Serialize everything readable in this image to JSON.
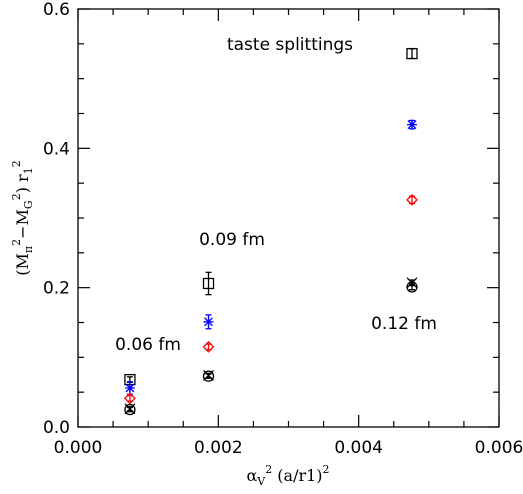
{
  "chart_data": {
    "type": "scatter",
    "title": "taste splittings",
    "xlabel_parts": [
      "α",
      "V",
      "2",
      " (a/r1)",
      "2"
    ],
    "ylabel_parts": [
      "(M",
      "π",
      "2",
      "−M",
      "G",
      "2",
      ") r",
      "1",
      "2"
    ],
    "xlim": [
      0.0,
      0.006
    ],
    "ylim": [
      0.0,
      0.6
    ],
    "x_ticks": [
      "0.000",
      "0.002",
      "0.004",
      "0.006"
    ],
    "y_ticks": [
      "0.0",
      "0.2",
      "0.4",
      "0.6"
    ],
    "annotations": [
      "0.06 fm",
      "0.09 fm",
      "0.12 fm"
    ],
    "grid": false,
    "series": [
      {
        "marker": "square",
        "color": "#000000",
        "x": [
          0.00074,
          0.00186,
          0.00476
        ],
        "y": [
          0.068,
          0.206,
          0.536
        ],
        "err": [
          0.004,
          0.016,
          0.007
        ]
      },
      {
        "marker": "star",
        "color": "#0000ff",
        "x": [
          0.00074,
          0.00186,
          0.00476
        ],
        "y": [
          0.056,
          0.151,
          0.434
        ],
        "err": [
          0.009,
          0.01,
          0.006
        ]
      },
      {
        "marker": "diamond",
        "color": "#ff0000",
        "x": [
          0.00074,
          0.00186,
          0.00476
        ],
        "y": [
          0.041,
          0.115,
          0.326
        ],
        "err": [
          0.004,
          0.004,
          0.005
        ]
      },
      {
        "marker": "cross",
        "color": "#000000",
        "x": [
          0.00074,
          0.00186,
          0.00476
        ],
        "y": [
          0.026,
          0.074,
          0.207
        ],
        "err": [
          0.003,
          0.003,
          0.004
        ]
      },
      {
        "marker": "circle",
        "color": "#000000",
        "x": [
          0.00074,
          0.00186,
          0.00476
        ],
        "y": [
          0.025,
          0.073,
          0.201
        ],
        "err": [
          0.003,
          0.003,
          0.004
        ]
      }
    ]
  }
}
